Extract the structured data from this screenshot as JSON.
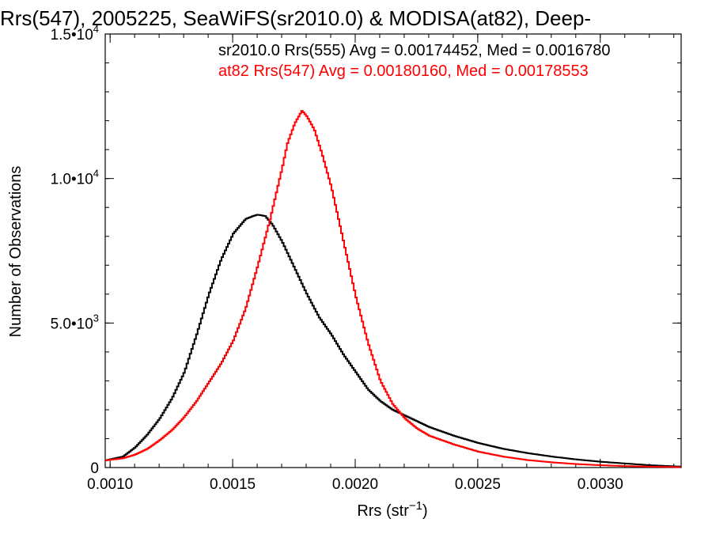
{
  "chart_data": {
    "type": "line",
    "title": "Rrs(547), 2005225, SeaWiFS(sr2010.0) & MODISA(at82), Deep-",
    "xlabel": "Rrs (str",
    "xlabel_exponent": "−1",
    "xlabel_suffix": ")",
    "ylabel": "Number of Observations",
    "xlim": [
      0.00098,
      0.00333
    ],
    "ylim": [
      0,
      15000
    ],
    "x_ticks": [
      {
        "value": 0.001,
        "label": "0.0010"
      },
      {
        "value": 0.0015,
        "label": "0.0015"
      },
      {
        "value": 0.002,
        "label": "0.0020"
      },
      {
        "value": 0.0025,
        "label": "0.0025"
      },
      {
        "value": 0.003,
        "label": "0.0030"
      }
    ],
    "y_ticks": [
      {
        "value": 0,
        "mantissa": "0",
        "exponent": ""
      },
      {
        "value": 5000,
        "mantissa": "5.0•10",
        "exponent": "3"
      },
      {
        "value": 10000,
        "mantissa": "1.0•10",
        "exponent": "4"
      },
      {
        "value": 15000,
        "mantissa": "1.5•10",
        "exponent": "4"
      }
    ],
    "grid": false,
    "legend_position": "top-right",
    "series": [
      {
        "name": "sr2010.0 Rrs(555) Avg = 0.00174452, Med = 0.0016780",
        "color": "#000000",
        "x": [
          0.00098,
          0.00105,
          0.0011,
          0.00115,
          0.0012,
          0.00125,
          0.0013,
          0.00135,
          0.0014,
          0.00145,
          0.0015,
          0.00155,
          0.00158,
          0.0016,
          0.00163,
          0.00166,
          0.0017,
          0.00175,
          0.0018,
          0.00185,
          0.0019,
          0.00195,
          0.002,
          0.00205,
          0.0021,
          0.00215,
          0.0022,
          0.00225,
          0.0023,
          0.0024,
          0.0025,
          0.0026,
          0.0027,
          0.0028,
          0.0029,
          0.003,
          0.0031,
          0.0032,
          0.00333
        ],
        "y": [
          250,
          380,
          700,
          1150,
          1700,
          2400,
          3300,
          4600,
          6000,
          7200,
          8100,
          8600,
          8700,
          8750,
          8700,
          8400,
          7800,
          6900,
          6000,
          5200,
          4600,
          3900,
          3300,
          2700,
          2300,
          2000,
          1800,
          1600,
          1400,
          1100,
          850,
          650,
          500,
          380,
          280,
          200,
          140,
          80,
          30
        ]
      },
      {
        "name": "at82 Rrs(547) Avg = 0.00180160, Med = 0.00178553",
        "color": "#ff0000",
        "x": [
          0.00098,
          0.00105,
          0.0011,
          0.00115,
          0.0012,
          0.00125,
          0.0013,
          0.00135,
          0.0014,
          0.00145,
          0.0015,
          0.00155,
          0.0016,
          0.00165,
          0.0017,
          0.00172,
          0.00175,
          0.00177,
          0.00178,
          0.0018,
          0.00183,
          0.00186,
          0.0019,
          0.00195,
          0.002,
          0.00205,
          0.0021,
          0.00215,
          0.0022,
          0.00225,
          0.0023,
          0.0024,
          0.0025,
          0.0026,
          0.0027,
          0.0028,
          0.0029,
          0.003,
          0.0031,
          0.0032,
          0.00333
        ],
        "y": [
          250,
          320,
          450,
          650,
          950,
          1300,
          1750,
          2300,
          2950,
          3600,
          4400,
          5500,
          7000,
          8600,
          10400,
          11200,
          11900,
          12200,
          12350,
          12150,
          11700,
          10900,
          9700,
          7800,
          5900,
          4300,
          3000,
          2200,
          1700,
          1350,
          1100,
          800,
          550,
          380,
          260,
          180,
          120,
          80,
          50,
          30,
          15
        ]
      }
    ]
  }
}
